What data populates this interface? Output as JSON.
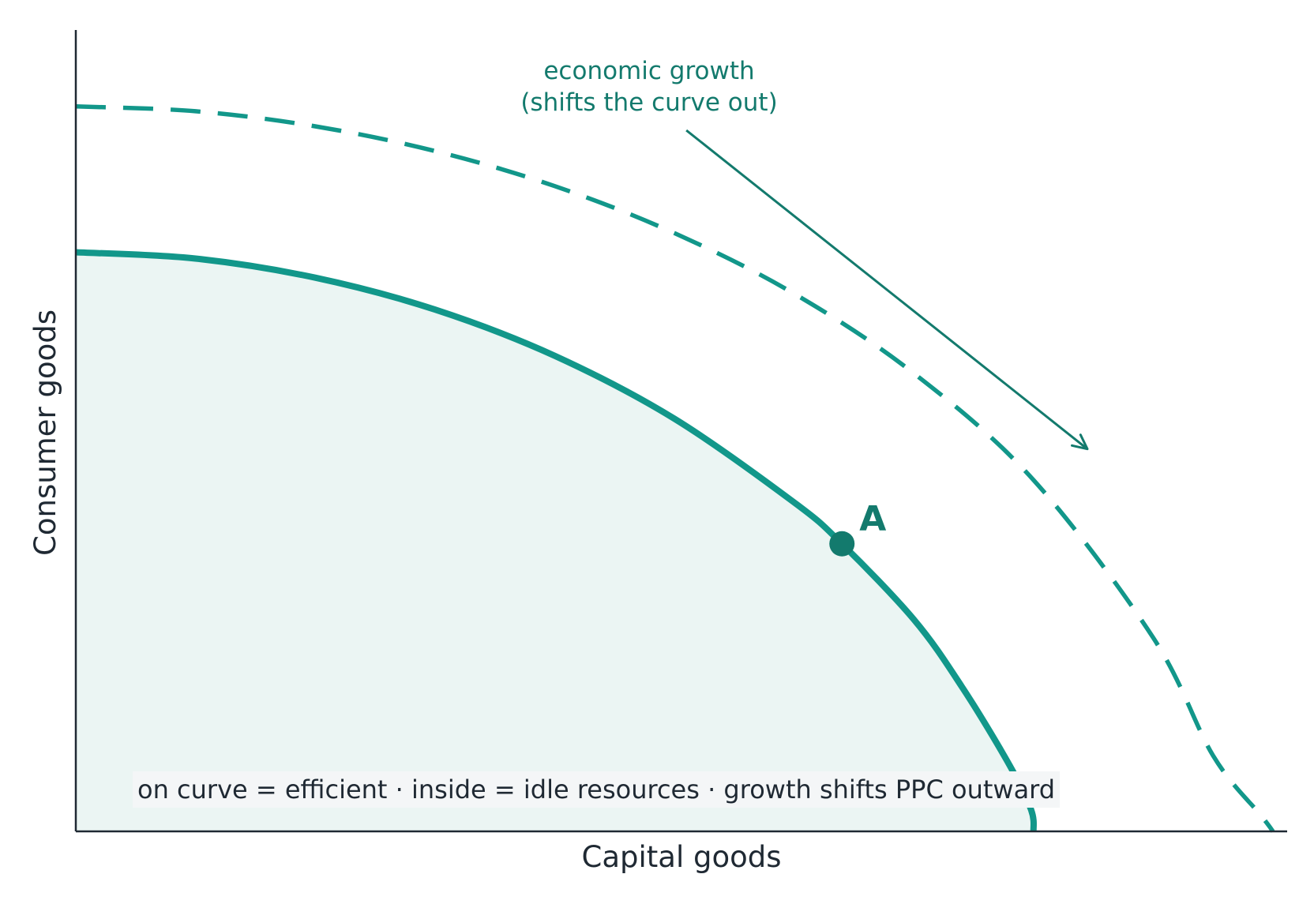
{
  "chart_data": {
    "type": "line",
    "xlabel": "Capital goods",
    "ylabel": "Consumer goods",
    "xlim": [
      0,
      10
    ],
    "ylim": [
      0,
      10
    ],
    "grid": false,
    "series": [
      {
        "style": "solid",
        "filled": true,
        "x": [
          0,
          1,
          2,
          3,
          4,
          5,
          6,
          6.4,
          7,
          7.4,
          7.8,
          7.98,
          8
        ],
        "y": [
          7.27,
          7.19,
          6.95,
          6.55,
          5.97,
          5.18,
          4.13,
          3.61,
          2.66,
          1.82,
          0.83,
          0.27,
          0
        ]
      },
      {
        "style": "dashed",
        "filled": false,
        "x": [
          0,
          1,
          2,
          3,
          4,
          5,
          6,
          7,
          8,
          9,
          9.5,
          9.9,
          10
        ],
        "y": [
          9.1,
          9.04,
          8.85,
          8.54,
          8.1,
          7.51,
          6.75,
          5.75,
          4.41,
          2.43,
          0.95,
          0.2,
          0
        ]
      }
    ],
    "points": [
      {
        "label": "A",
        "x": 6.4,
        "y": 3.61
      }
    ],
    "annotations": [
      {
        "lines": [
          "economic growth",
          "(shifts the curve out)"
        ],
        "arrow_from": [
          5.1,
          8.8
        ],
        "arrow_to": [
          8.45,
          4.8
        ]
      }
    ],
    "caption": "on curve = efficient  ·  inside = idle resources  ·  growth shifts PPC outward",
    "colors": {
      "curve": "#12978a",
      "point": "#137a6d",
      "annotation": "#137a6d",
      "fill": "#ebf5f3",
      "axis": "#1f2933",
      "caption_bg": "#f4f6f7"
    }
  }
}
